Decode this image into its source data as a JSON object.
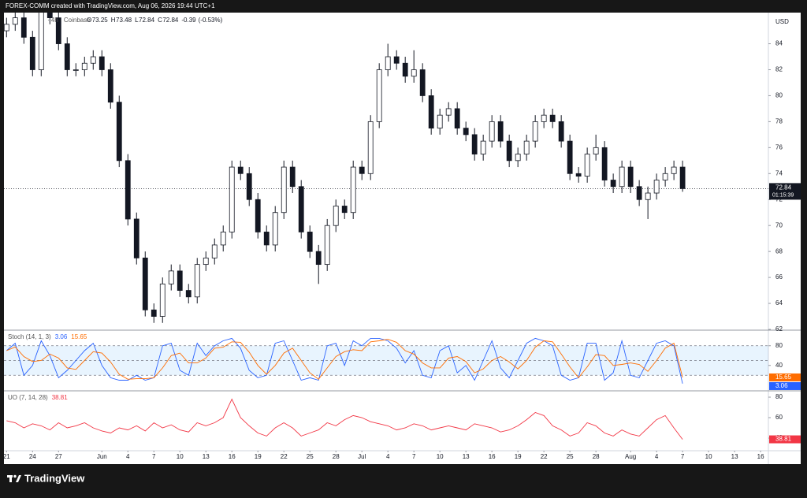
{
  "header_text": "FOREX-COMM created with TradingView.com, Aug 06, 2026 19:44 UTC+1",
  "footer_brand": "TradingView",
  "chart_data": [
    {
      "type": "candlestick",
      "symbol": "· 4h · Coinbase",
      "currency": "USD",
      "legend": [
        {
          "label": "O",
          "value": 73.25
        },
        {
          "label": "H",
          "value": 73.48
        },
        {
          "label": "L",
          "value": 72.84
        },
        {
          "label": "C",
          "value": 72.84
        }
      ],
      "change": -0.39,
      "change_pct": {
        "value": -0.53,
        "label": "(-0.53%)"
      },
      "last_price": 72.84,
      "countdown": "01:15:39",
      "open": [
        85,
        85.5,
        86,
        84.5,
        82,
        86.5,
        86,
        84,
        82,
        82,
        82.5,
        83,
        82,
        79.5,
        75,
        70.5,
        67.5,
        63.5,
        63,
        65.5,
        66.5,
        65,
        64.5,
        67,
        67.5,
        68.5,
        69.5,
        74.5,
        74,
        72,
        69.5,
        68.5,
        71,
        74.5,
        73,
        69.5,
        68,
        67,
        70,
        71.5,
        71,
        74.5,
        74,
        78,
        82,
        83,
        82.5,
        81.5,
        82,
        80,
        77.5,
        78.5,
        79,
        77.5,
        77,
        75.5,
        76.5,
        78,
        76.5,
        75,
        75.5,
        76.5,
        78,
        78.5,
        78,
        76.5,
        74,
        73.8,
        75.5,
        76,
        73.5,
        73,
        74.5,
        73,
        72,
        72.5,
        73.5,
        74,
        74.5
      ],
      "high": [
        86,
        86.5,
        86.5,
        85,
        87,
        87,
        86.5,
        84.5,
        82.5,
        83,
        83.5,
        83.5,
        82.5,
        80,
        75.5,
        71,
        68,
        64,
        66,
        67,
        67,
        65.5,
        67.5,
        68,
        69,
        70,
        75,
        75,
        74.5,
        72.5,
        70,
        71.5,
        75,
        75,
        73.5,
        70,
        68.5,
        70.5,
        72,
        72,
        75,
        75,
        78.5,
        82.5,
        84,
        83.5,
        83,
        83.5,
        82.5,
        80.5,
        79,
        79.5,
        79.5,
        78,
        77.5,
        77,
        78.5,
        78.5,
        77,
        76,
        77,
        78.5,
        79,
        79,
        78.5,
        77,
        74.5,
        76,
        77,
        76.5,
        74,
        75,
        75,
        73.5,
        73,
        74,
        74.5,
        75,
        75
      ],
      "low": [
        84.5,
        85,
        84,
        81.5,
        81.5,
        85.5,
        83.5,
        81.5,
        81.5,
        81.5,
        82,
        81.5,
        79,
        74.5,
        70,
        67,
        63,
        62.5,
        62.5,
        65,
        64.5,
        64,
        64,
        66.5,
        67,
        68,
        69,
        73.5,
        71.5,
        69,
        68,
        68,
        70.5,
        72.5,
        69,
        67.5,
        65.5,
        66.5,
        69.5,
        70.5,
        70.5,
        73.5,
        73.5,
        77.5,
        81.5,
        82,
        81,
        81,
        79.5,
        77,
        77,
        78,
        77,
        76.5,
        75,
        75,
        76,
        76,
        74.5,
        74.5,
        75,
        76,
        77.5,
        77.5,
        76,
        73.5,
        73.3,
        73.3,
        75,
        73,
        72.5,
        72.5,
        72.5,
        71.5,
        70.5,
        72,
        73,
        73.5,
        72.6
      ],
      "close": [
        85.5,
        86,
        84.5,
        82,
        86.5,
        86,
        84,
        82,
        82,
        82.5,
        83,
        82,
        79.5,
        75,
        70.5,
        67.5,
        63.5,
        63,
        65.5,
        66.5,
        65,
        64.5,
        67,
        67.5,
        68.5,
        69.5,
        74.5,
        74,
        72,
        69.5,
        68.5,
        71,
        74.5,
        73,
        69.5,
        68,
        67,
        70,
        71.5,
        71,
        74.5,
        74,
        78,
        82,
        83,
        82.5,
        81.5,
        82,
        80,
        77.5,
        78.5,
        79,
        77.5,
        77,
        75.5,
        76.5,
        78,
        76.5,
        75,
        75.5,
        76.5,
        78,
        78.5,
        78,
        76.5,
        74,
        73.8,
        75.5,
        76,
        73.5,
        73,
        74.5,
        73,
        72,
        72.5,
        73.5,
        74,
        74.5,
        72.84
      ],
      "ylim": [
        62,
        86.4
      ],
      "yticks": [
        84,
        82,
        80,
        78,
        76,
        74,
        72,
        70,
        68,
        66,
        64,
        62
      ],
      "xlim": [
        -0.3,
        87.9
      ],
      "xticks": [
        {
          "value": 0,
          "label": "21"
        },
        {
          "value": 3,
          "label": "24"
        },
        {
          "value": 6,
          "label": "27"
        },
        {
          "value": 11,
          "label": "Jun"
        },
        {
          "value": 14,
          "label": "4"
        },
        {
          "value": 17,
          "label": "7"
        },
        {
          "value": 20,
          "label": "10"
        },
        {
          "value": 23,
          "label": "13"
        },
        {
          "value": 26,
          "label": "16"
        },
        {
          "value": 29,
          "label": "19"
        },
        {
          "value": 32,
          "label": "22"
        },
        {
          "value": 35,
          "label": "25"
        },
        {
          "value": 38,
          "label": "28"
        },
        {
          "value": 41,
          "label": "Jul"
        },
        {
          "value": 44,
          "label": "4"
        },
        {
          "value": 47,
          "label": "7"
        },
        {
          "value": 50,
          "label": "10"
        },
        {
          "value": 53,
          "label": "13"
        },
        {
          "value": 56,
          "label": "16"
        },
        {
          "value": 59,
          "label": "19"
        },
        {
          "value": 62,
          "label": "22"
        },
        {
          "value": 65,
          "label": "25"
        },
        {
          "value": 68,
          "label": "28"
        },
        {
          "value": 72,
          "label": "Aug"
        },
        {
          "value": 75,
          "label": "4"
        },
        {
          "value": 78,
          "label": "7"
        },
        {
          "value": 81,
          "label": "10"
        },
        {
          "value": 84,
          "label": "13"
        },
        {
          "value": 87,
          "label": "16"
        }
      ]
    },
    {
      "type": "line",
      "title": "Stoch (14, 1, 3)",
      "band": [
        20,
        80
      ],
      "hlines": [
        80,
        50,
        20
      ],
      "series": [
        {
          "color": "#2962ff",
          "values": [
            70,
            85,
            20,
            40,
            90,
            60,
            15,
            30,
            50,
            70,
            85,
            40,
            15,
            10,
            10,
            20,
            10,
            15,
            80,
            85,
            30,
            20,
            85,
            60,
            80,
            90,
            95,
            75,
            30,
            15,
            20,
            85,
            90,
            50,
            10,
            15,
            10,
            80,
            85,
            40,
            90,
            80,
            95,
            95,
            90,
            75,
            45,
            70,
            20,
            15,
            70,
            80,
            25,
            40,
            10,
            50,
            90,
            35,
            15,
            50,
            85,
            95,
            90,
            80,
            20,
            10,
            15,
            85,
            85,
            10,
            25,
            90,
            20,
            15,
            50,
            85,
            90,
            80,
            3.06
          ]
        },
        {
          "color": "#ff6d00",
          "values": [
            70,
            77.5,
            58,
            48,
            50,
            63,
            55,
            35,
            32,
            50,
            68,
            65,
            47,
            22,
            12,
            13,
            13,
            15,
            35,
            60,
            65,
            45,
            45,
            55,
            75,
            77,
            88,
            87,
            67,
            40,
            22,
            40,
            65,
            75,
            50,
            25,
            12,
            35,
            58,
            68,
            72,
            70,
            88,
            90,
            93,
            87,
            70,
            63,
            45,
            35,
            35,
            55,
            58,
            48,
            25,
            33,
            50,
            58,
            47,
            33,
            50,
            77,
            90,
            88,
            63,
            37,
            15,
            37,
            62,
            60,
            40,
            42,
            45,
            42,
            28,
            50,
            75,
            85,
            15.65
          ]
        }
      ],
      "ylim": [
        -10,
        110
      ],
      "yticks": [
        80,
        40
      ]
    },
    {
      "type": "line",
      "title": "UO (7, 14, 28)",
      "series": [
        {
          "color": "#f23645",
          "values": [
            57,
            55,
            50,
            54,
            52,
            48,
            55,
            50,
            52,
            55,
            50,
            47,
            45,
            50,
            48,
            52,
            47,
            55,
            50,
            53,
            48,
            46,
            55,
            52,
            55,
            60,
            78,
            60,
            52,
            45,
            42,
            50,
            55,
            50,
            42,
            45,
            48,
            55,
            52,
            58,
            62,
            60,
            56,
            54,
            52,
            48,
            50,
            54,
            52,
            48,
            50,
            52,
            50,
            48,
            54,
            52,
            50,
            46,
            48,
            52,
            58,
            65,
            62,
            52,
            48,
            42,
            45,
            55,
            52,
            45,
            42,
            48,
            44,
            42,
            50,
            58,
            62,
            50,
            38.81
          ]
        }
      ],
      "ylim": [
        27.7,
        85.4
      ],
      "yticks": [
        80,
        60,
        40
      ]
    }
  ]
}
